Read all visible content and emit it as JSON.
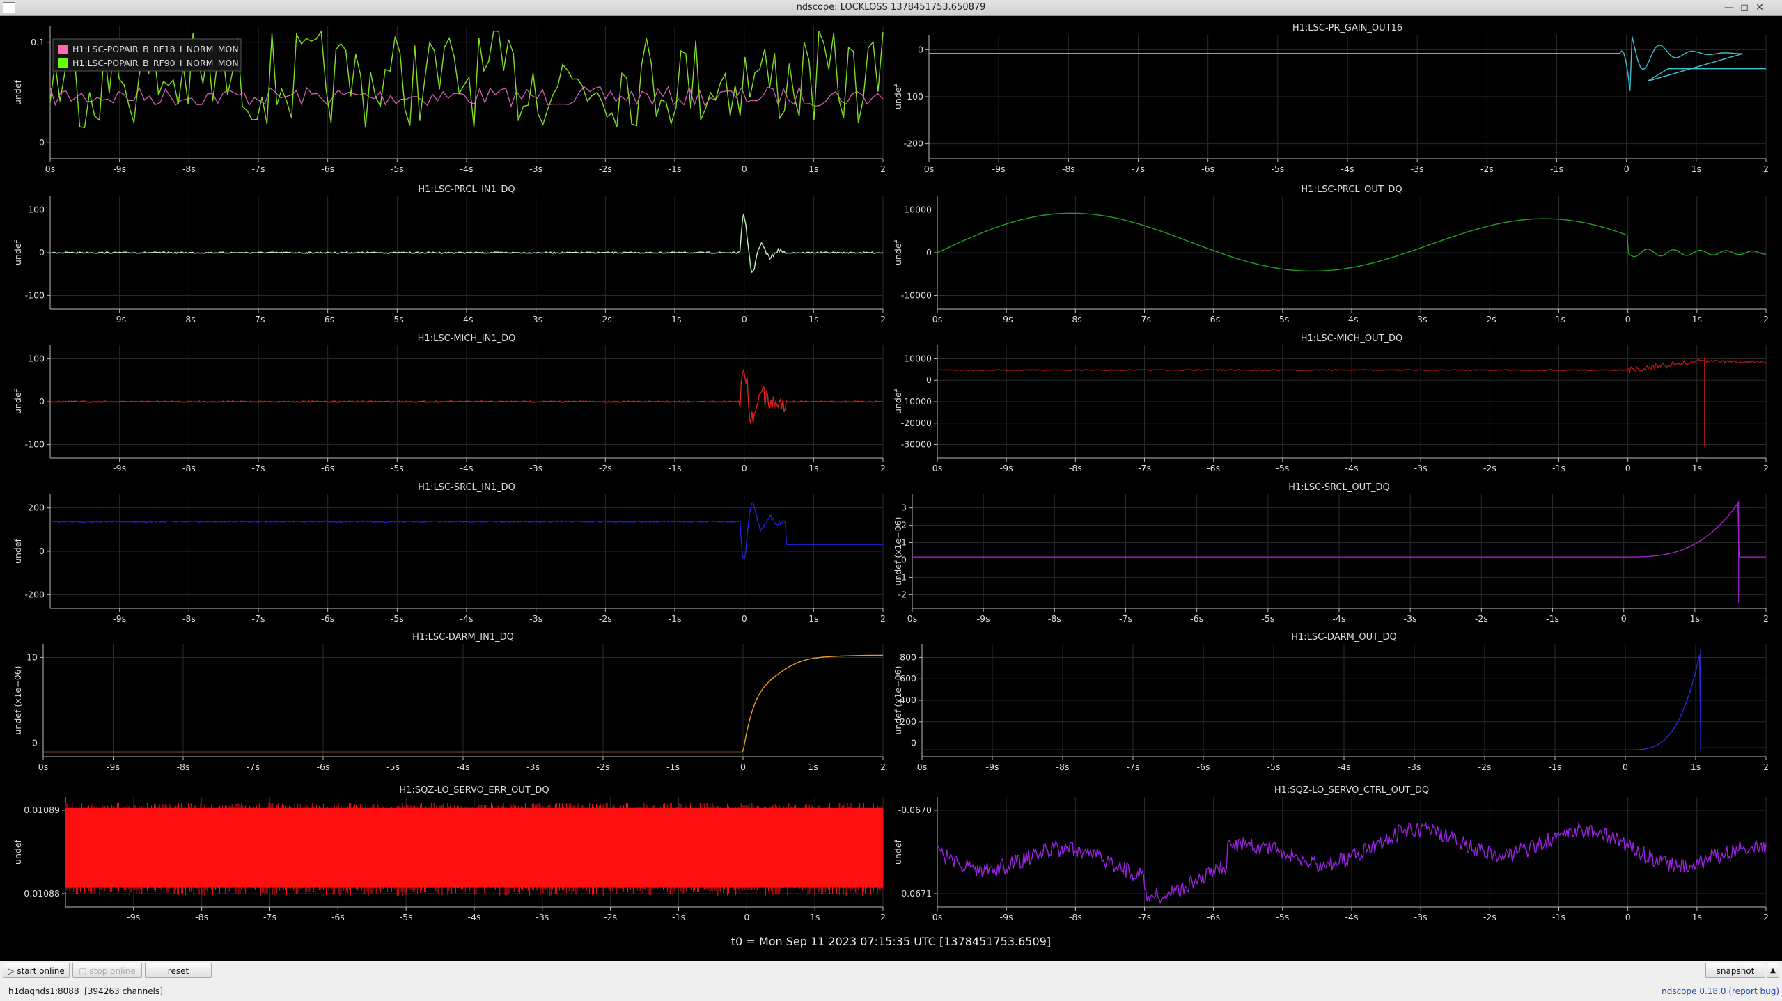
{
  "window": {
    "title": "ndscope: LOCKLOSS 1378451753.650879"
  },
  "plots": [
    {
      "id": "p1",
      "title": "",
      "ylabel": "undef",
      "yticks": [
        "0.1",
        "0"
      ],
      "xticks": [
        "0s",
        "-9s",
        "-8s",
        "-7s",
        "-6s",
        "-5s",
        "-4s",
        "-3s",
        "-2s",
        "-1s",
        "0",
        "1s",
        "2"
      ],
      "legend": [
        {
          "name": "H1:LSC-POPAIR_B_RF18_I_NORM_MON",
          "color": "#ff69b4"
        },
        {
          "name": "H1:LSC-POPAIR_B_RF90_I_NORM_MON",
          "color": "#66ff00"
        }
      ],
      "colors": [
        "#e060b0",
        "#7fdd20"
      ]
    },
    {
      "id": "p2",
      "title": "H1:LSC-PR_GAIN_OUT16",
      "ylabel": "undef",
      "yticks": [
        "0",
        "-100",
        "-200"
      ],
      "xticks": [
        "0s",
        "-9s",
        "-8s",
        "-7s",
        "-6s",
        "-5s",
        "-4s",
        "-3s",
        "-2s",
        "-1s",
        "0",
        "1s",
        "2"
      ],
      "colors": [
        "#40c0d0"
      ]
    },
    {
      "id": "p3",
      "title": "H1:LSC-PRCL_IN1_DQ",
      "ylabel": "undef",
      "yticks": [
        "100",
        "0",
        "-100"
      ],
      "xticks": [
        "-9s",
        "-8s",
        "-7s",
        "-6s",
        "-5s",
        "-4s",
        "-3s",
        "-2s",
        "-1s",
        "0",
        "1s",
        "2"
      ],
      "colors": [
        "#c0f0c0"
      ]
    },
    {
      "id": "p4",
      "title": "H1:LSC-PRCL_OUT_DQ",
      "ylabel": "undef",
      "yticks": [
        "10000",
        "0",
        "-10000"
      ],
      "xticks": [
        "0s",
        "-9s",
        "-8s",
        "-7s",
        "-6s",
        "-5s",
        "-4s",
        "-3s",
        "-2s",
        "-1s",
        "0",
        "1s",
        "2"
      ],
      "colors": [
        "#20a020"
      ]
    },
    {
      "id": "p5",
      "title": "H1:LSC-MICH_IN1_DQ",
      "ylabel": "undef",
      "yticks": [
        "100",
        "0",
        "-100"
      ],
      "xticks": [
        "-9s",
        "-8s",
        "-7s",
        "-6s",
        "-5s",
        "-4s",
        "-3s",
        "-2s",
        "-1s",
        "0",
        "1s",
        "2"
      ],
      "colors": [
        "#e02020"
      ]
    },
    {
      "id": "p6",
      "title": "H1:LSC-MICH_OUT_DQ",
      "ylabel": "undef",
      "yticks": [
        "10000",
        "0",
        "-10000",
        "-20000",
        "-30000"
      ],
      "xticks": [
        "0s",
        "-9s",
        "-8s",
        "-7s",
        "-6s",
        "-5s",
        "-4s",
        "-3s",
        "-2s",
        "-1s",
        "0",
        "1s",
        "2"
      ],
      "colors": [
        "#b01818"
      ]
    },
    {
      "id": "p7",
      "title": "H1:LSC-SRCL_IN1_DQ",
      "ylabel": "undef",
      "yticks": [
        "200",
        "0",
        "-200"
      ],
      "xticks": [
        "-9s",
        "-8s",
        "-7s",
        "-6s",
        "-5s",
        "-4s",
        "-3s",
        "-2s",
        "-1s",
        "0",
        "1s",
        "2"
      ],
      "colors": [
        "#2020e0"
      ]
    },
    {
      "id": "p8",
      "title": "H1:LSC-SRCL_OUT_DQ",
      "ylabel": "undef (x1e+06)",
      "yticks": [
        "3",
        "2",
        "1",
        "0",
        "-1",
        "-2"
      ],
      "xticks": [
        "0s",
        "-9s",
        "-8s",
        "-7s",
        "-6s",
        "-5s",
        "-4s",
        "-3s",
        "-2s",
        "-1s",
        "0",
        "1s",
        "2"
      ],
      "colors": [
        "#a020d0"
      ]
    },
    {
      "id": "p9",
      "title": "H1:LSC-DARM_IN1_DQ",
      "ylabel": "undef (x1e+06)",
      "yticks": [
        "10",
        "0"
      ],
      "xticks": [
        "0s",
        "-9s",
        "-8s",
        "-7s",
        "-6s",
        "-5s",
        "-4s",
        "-3s",
        "-2s",
        "-1s",
        "0",
        "1s",
        "2"
      ],
      "colors": [
        "#e89a20"
      ]
    },
    {
      "id": "p10",
      "title": "H1:LSC-DARM_OUT_DQ",
      "ylabel": "undef (x1e+06)",
      "yticks": [
        "800",
        "600",
        "400",
        "200",
        "0"
      ],
      "xticks": [
        "0s",
        "-9s",
        "-8s",
        "-7s",
        "-6s",
        "-5s",
        "-4s",
        "-3s",
        "-2s",
        "-1s",
        "0",
        "1s",
        "2"
      ],
      "colors": [
        "#2828d8"
      ]
    },
    {
      "id": "p11",
      "title": "H1:SQZ-LO_SERVO_ERR_OUT_DQ",
      "ylabel": "undef",
      "yticks": [
        "0.01089",
        "0.01088"
      ],
      "xticks": [
        "-9s",
        "-8s",
        "-7s",
        "-6s",
        "-5s",
        "-4s",
        "-3s",
        "-2s",
        "-1s",
        "0",
        "1s",
        "2"
      ],
      "colors": [
        "#ff1010"
      ]
    },
    {
      "id": "p12",
      "title": "H1:SQZ-LO_SERVO_CTRL_OUT_DQ",
      "ylabel": "undef",
      "yticks": [
        "-0.0670",
        "-0.0671"
      ],
      "xticks": [
        "0s",
        "-9s",
        "-8s",
        "-7s",
        "-6s",
        "-5s",
        "-4s",
        "-3s",
        "-2s",
        "-1s",
        "0",
        "1s",
        "2"
      ],
      "colors": [
        "#9a20e0"
      ]
    }
  ],
  "t0_label": "t0 = Mon Sep 11 2023 07:15:35 UTC [1378451753.6509]",
  "buttons": {
    "start_online": "start online",
    "stop_online": "stop online",
    "reset": "reset",
    "snapshot": "snapshot"
  },
  "status": {
    "server": "h1daqnds1:8088",
    "channels": "[394263 channels]"
  },
  "version": {
    "name": "ndscope 0.18.0",
    "report": "(report bug)"
  }
}
